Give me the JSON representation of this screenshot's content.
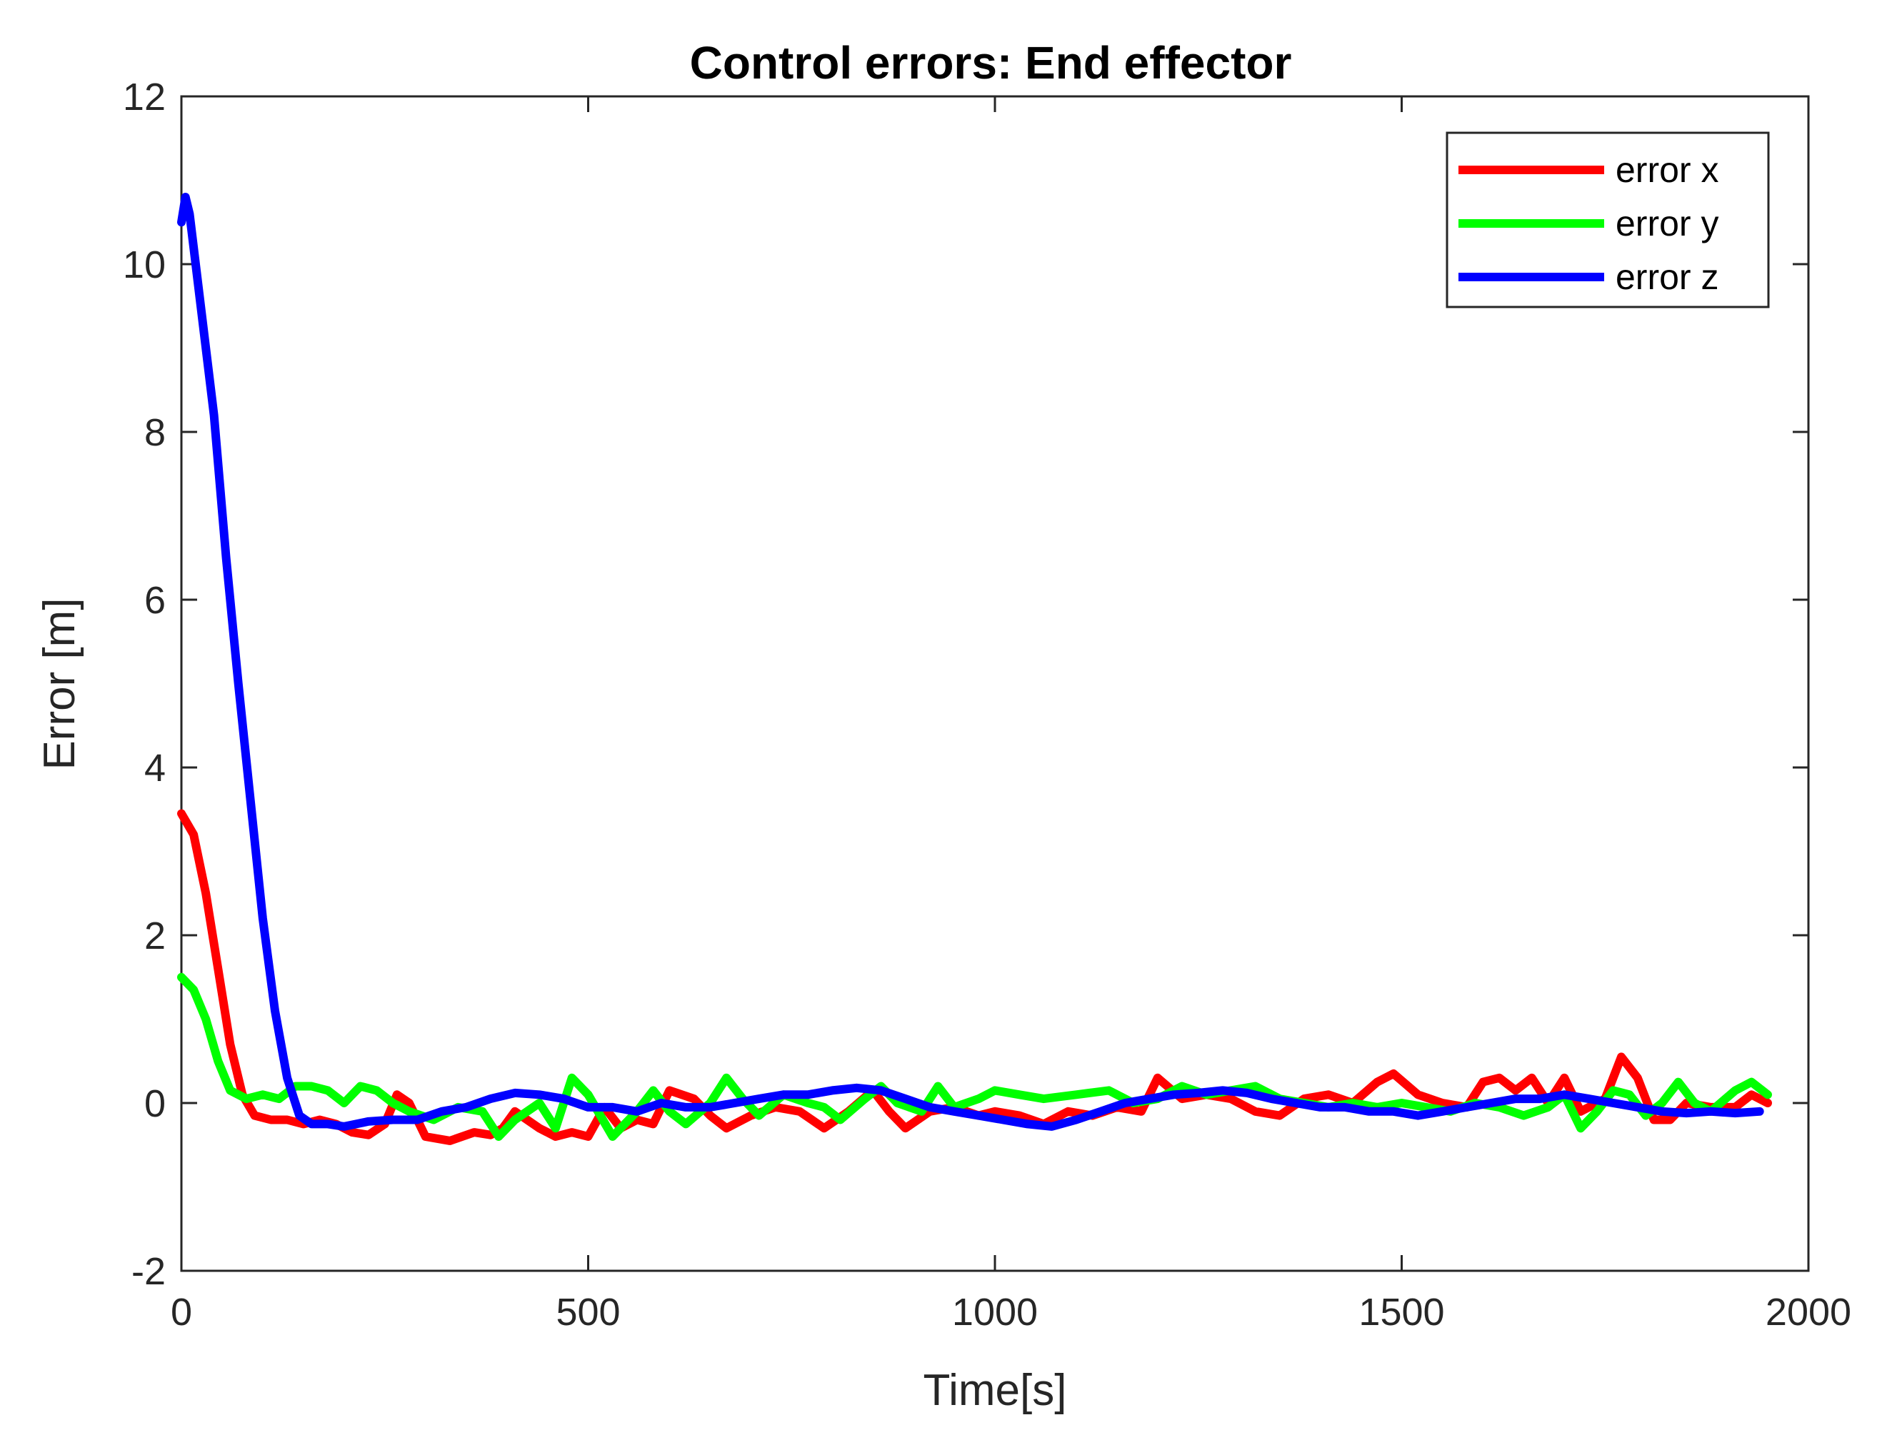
{
  "chart_data": {
    "type": "line",
    "title": "Control errors: End effector",
    "xlabel": "Time[s]",
    "ylabel": "Error [m]",
    "xlim": [
      0,
      2000
    ],
    "ylim": [
      -2,
      12
    ],
    "xticks": [
      0,
      500,
      1000,
      1500,
      2000
    ],
    "yticks": [
      -2,
      0,
      2,
      4,
      6,
      8,
      10,
      12
    ],
    "grid": false,
    "legend_position": "top-right",
    "series": [
      {
        "name": "error x",
        "color": "#ff0000",
        "points": [
          [
            0,
            3.45
          ],
          [
            15,
            3.2
          ],
          [
            30,
            2.5
          ],
          [
            45,
            1.6
          ],
          [
            60,
            0.7
          ],
          [
            75,
            0.1
          ],
          [
            90,
            -0.15
          ],
          [
            110,
            -0.2
          ],
          [
            130,
            -0.2
          ],
          [
            150,
            -0.25
          ],
          [
            170,
            -0.2
          ],
          [
            190,
            -0.25
          ],
          [
            210,
            -0.35
          ],
          [
            230,
            -0.38
          ],
          [
            250,
            -0.25
          ],
          [
            265,
            0.1
          ],
          [
            280,
            0.0
          ],
          [
            300,
            -0.4
          ],
          [
            330,
            -0.45
          ],
          [
            360,
            -0.35
          ],
          [
            380,
            -0.38
          ],
          [
            395,
            -0.3
          ],
          [
            410,
            -0.1
          ],
          [
            440,
            -0.3
          ],
          [
            460,
            -0.4
          ],
          [
            480,
            -0.35
          ],
          [
            500,
            -0.4
          ],
          [
            520,
            -0.05
          ],
          [
            540,
            -0.3
          ],
          [
            560,
            -0.2
          ],
          [
            580,
            -0.25
          ],
          [
            600,
            0.15
          ],
          [
            630,
            0.05
          ],
          [
            650,
            -0.15
          ],
          [
            670,
            -0.3
          ],
          [
            700,
            -0.15
          ],
          [
            730,
            -0.05
          ],
          [
            760,
            -0.1
          ],
          [
            790,
            -0.3
          ],
          [
            820,
            -0.1
          ],
          [
            850,
            0.15
          ],
          [
            870,
            -0.1
          ],
          [
            890,
            -0.3
          ],
          [
            920,
            -0.1
          ],
          [
            950,
            -0.05
          ],
          [
            980,
            -0.15
          ],
          [
            1000,
            -0.1
          ],
          [
            1030,
            -0.15
          ],
          [
            1060,
            -0.25
          ],
          [
            1090,
            -0.1
          ],
          [
            1120,
            -0.15
          ],
          [
            1150,
            -0.05
          ],
          [
            1180,
            -0.1
          ],
          [
            1200,
            0.3
          ],
          [
            1230,
            0.05
          ],
          [
            1260,
            0.1
          ],
          [
            1290,
            0.05
          ],
          [
            1320,
            -0.1
          ],
          [
            1350,
            -0.15
          ],
          [
            1380,
            0.05
          ],
          [
            1410,
            0.1
          ],
          [
            1440,
            0.0
          ],
          [
            1470,
            0.25
          ],
          [
            1490,
            0.35
          ],
          [
            1520,
            0.1
          ],
          [
            1550,
            0.0
          ],
          [
            1580,
            -0.05
          ],
          [
            1600,
            0.25
          ],
          [
            1620,
            0.3
          ],
          [
            1640,
            0.15
          ],
          [
            1660,
            0.3
          ],
          [
            1680,
            0.0
          ],
          [
            1700,
            0.3
          ],
          [
            1720,
            -0.1
          ],
          [
            1750,
            0.05
          ],
          [
            1770,
            0.55
          ],
          [
            1790,
            0.3
          ],
          [
            1810,
            -0.2
          ],
          [
            1830,
            -0.2
          ],
          [
            1850,
            0.0
          ],
          [
            1880,
            -0.05
          ],
          [
            1910,
            -0.05
          ],
          [
            1930,
            0.1
          ],
          [
            1950,
            0.0
          ]
        ]
      },
      {
        "name": "error y",
        "color": "#00ff00",
        "points": [
          [
            0,
            1.5
          ],
          [
            15,
            1.35
          ],
          [
            30,
            1.0
          ],
          [
            45,
            0.5
          ],
          [
            60,
            0.15
          ],
          [
            80,
            0.05
          ],
          [
            100,
            0.1
          ],
          [
            120,
            0.05
          ],
          [
            140,
            0.2
          ],
          [
            160,
            0.2
          ],
          [
            180,
            0.15
          ],
          [
            200,
            0.0
          ],
          [
            220,
            0.2
          ],
          [
            240,
            0.15
          ],
          [
            260,
            0.0
          ],
          [
            280,
            -0.1
          ],
          [
            310,
            -0.2
          ],
          [
            340,
            -0.05
          ],
          [
            370,
            -0.1
          ],
          [
            390,
            -0.4
          ],
          [
            410,
            -0.2
          ],
          [
            440,
            0.0
          ],
          [
            460,
            -0.3
          ],
          [
            480,
            0.3
          ],
          [
            500,
            0.1
          ],
          [
            530,
            -0.4
          ],
          [
            560,
            -0.1
          ],
          [
            580,
            0.15
          ],
          [
            600,
            -0.1
          ],
          [
            620,
            -0.25
          ],
          [
            650,
            0.0
          ],
          [
            670,
            0.3
          ],
          [
            690,
            0.05
          ],
          [
            710,
            -0.15
          ],
          [
            740,
            0.1
          ],
          [
            770,
            0.0
          ],
          [
            790,
            -0.05
          ],
          [
            810,
            -0.2
          ],
          [
            840,
            0.05
          ],
          [
            860,
            0.2
          ],
          [
            880,
            0.0
          ],
          [
            910,
            -0.1
          ],
          [
            930,
            0.2
          ],
          [
            950,
            -0.05
          ],
          [
            980,
            0.05
          ],
          [
            1000,
            0.15
          ],
          [
            1030,
            0.1
          ],
          [
            1060,
            0.05
          ],
          [
            1100,
            0.1
          ],
          [
            1140,
            0.15
          ],
          [
            1170,
            0.0
          ],
          [
            1200,
            0.05
          ],
          [
            1230,
            0.2
          ],
          [
            1260,
            0.1
          ],
          [
            1290,
            0.15
          ],
          [
            1320,
            0.2
          ],
          [
            1350,
            0.05
          ],
          [
            1380,
            0.0
          ],
          [
            1410,
            -0.05
          ],
          [
            1440,
            0.0
          ],
          [
            1470,
            -0.05
          ],
          [
            1500,
            0.0
          ],
          [
            1530,
            -0.05
          ],
          [
            1560,
            -0.1
          ],
          [
            1590,
            0.0
          ],
          [
            1620,
            -0.05
          ],
          [
            1650,
            -0.15
          ],
          [
            1680,
            -0.05
          ],
          [
            1700,
            0.1
          ],
          [
            1720,
            -0.3
          ],
          [
            1740,
            -0.1
          ],
          [
            1760,
            0.15
          ],
          [
            1780,
            0.1
          ],
          [
            1800,
            -0.15
          ],
          [
            1820,
            0.0
          ],
          [
            1840,
            0.25
          ],
          [
            1860,
            0.0
          ],
          [
            1880,
            -0.1
          ],
          [
            1910,
            0.15
          ],
          [
            1930,
            0.25
          ],
          [
            1950,
            0.1
          ]
        ]
      },
      {
        "name": "error z",
        "color": "#0000ff",
        "points": [
          [
            0,
            10.5
          ],
          [
            5,
            10.8
          ],
          [
            10,
            10.6
          ],
          [
            25,
            9.4
          ],
          [
            40,
            8.2
          ],
          [
            55,
            6.5
          ],
          [
            70,
            5.0
          ],
          [
            85,
            3.6
          ],
          [
            100,
            2.2
          ],
          [
            115,
            1.1
          ],
          [
            130,
            0.3
          ],
          [
            145,
            -0.15
          ],
          [
            160,
            -0.25
          ],
          [
            180,
            -0.25
          ],
          [
            200,
            -0.28
          ],
          [
            230,
            -0.22
          ],
          [
            260,
            -0.2
          ],
          [
            290,
            -0.2
          ],
          [
            320,
            -0.1
          ],
          [
            350,
            -0.05
          ],
          [
            380,
            0.05
          ],
          [
            410,
            0.12
          ],
          [
            440,
            0.1
          ],
          [
            470,
            0.05
          ],
          [
            500,
            -0.05
          ],
          [
            530,
            -0.05
          ],
          [
            560,
            -0.1
          ],
          [
            590,
            0.0
          ],
          [
            620,
            -0.05
          ],
          [
            650,
            -0.05
          ],
          [
            680,
            0.0
          ],
          [
            710,
            0.05
          ],
          [
            740,
            0.1
          ],
          [
            770,
            0.1
          ],
          [
            800,
            0.15
          ],
          [
            830,
            0.18
          ],
          [
            860,
            0.15
          ],
          [
            890,
            0.05
          ],
          [
            920,
            -0.05
          ],
          [
            950,
            -0.1
          ],
          [
            980,
            -0.15
          ],
          [
            1010,
            -0.2
          ],
          [
            1040,
            -0.25
          ],
          [
            1070,
            -0.28
          ],
          [
            1100,
            -0.2
          ],
          [
            1130,
            -0.1
          ],
          [
            1160,
            0.0
          ],
          [
            1190,
            0.05
          ],
          [
            1220,
            0.1
          ],
          [
            1250,
            0.12
          ],
          [
            1280,
            0.15
          ],
          [
            1310,
            0.12
          ],
          [
            1340,
            0.05
          ],
          [
            1370,
            0.0
          ],
          [
            1400,
            -0.05
          ],
          [
            1430,
            -0.05
          ],
          [
            1460,
            -0.1
          ],
          [
            1490,
            -0.1
          ],
          [
            1520,
            -0.15
          ],
          [
            1550,
            -0.1
          ],
          [
            1580,
            -0.05
          ],
          [
            1610,
            0.0
          ],
          [
            1640,
            0.05
          ],
          [
            1670,
            0.05
          ],
          [
            1700,
            0.1
          ],
          [
            1730,
            0.05
          ],
          [
            1760,
            0.0
          ],
          [
            1790,
            -0.05
          ],
          [
            1820,
            -0.1
          ],
          [
            1850,
            -0.12
          ],
          [
            1880,
            -0.1
          ],
          [
            1910,
            -0.12
          ],
          [
            1940,
            -0.1
          ]
        ]
      }
    ]
  }
}
